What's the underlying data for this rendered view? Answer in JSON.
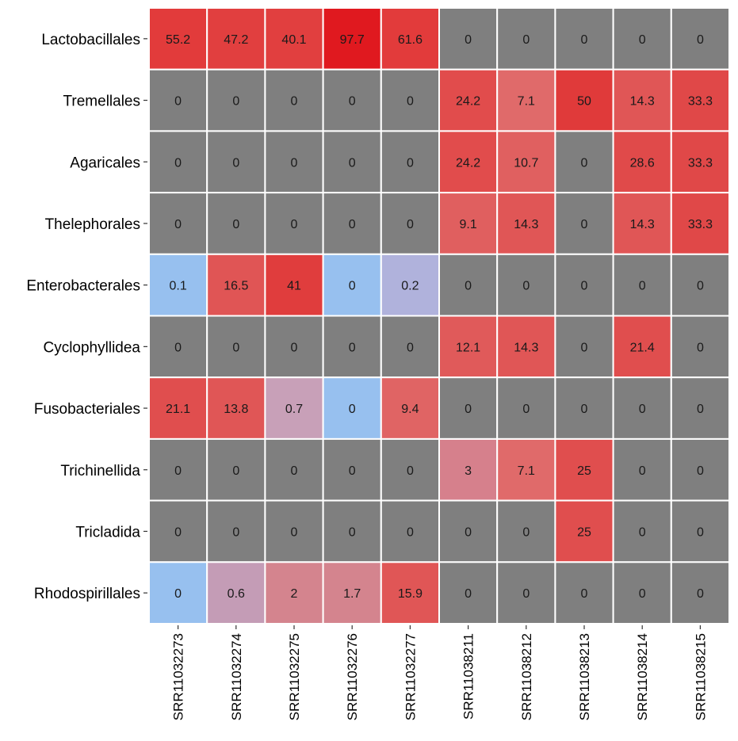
{
  "chart_data": {
    "type": "heatmap",
    "title": "",
    "xlabel": "",
    "ylabel": "",
    "legend": "none",
    "grid": false,
    "rows": [
      "Lactobacillales",
      "Tremellales",
      "Agaricales",
      "Thelephorales",
      "Enterobacterales",
      "Cyclophyllidea",
      "Fusobacteriales",
      "Trichinellida",
      "Tricladida",
      "Rhodospirillales"
    ],
    "columns": [
      "SRR11032273",
      "SRR11032274",
      "SRR11032275",
      "SRR11032276",
      "SRR11032277",
      "SRR11038211",
      "SRR11038212",
      "SRR11038213",
      "SRR11038214",
      "SRR11038215"
    ],
    "values": [
      [
        "55.2",
        "47.2",
        "40.1",
        "97.7",
        "61.6",
        "0",
        "0",
        "0",
        "0",
        "0"
      ],
      [
        "0",
        "0",
        "0",
        "0",
        "0",
        "24.2",
        "7.1",
        "50",
        "14.3",
        "33.3"
      ],
      [
        "0",
        "0",
        "0",
        "0",
        "0",
        "24.2",
        "10.7",
        "0",
        "28.6",
        "33.3"
      ],
      [
        "0",
        "0",
        "0",
        "0",
        "0",
        "9.1",
        "14.3",
        "0",
        "14.3",
        "33.3"
      ],
      [
        "0.1",
        "16.5",
        "41",
        "0",
        "0.2",
        "0",
        "0",
        "0",
        "0",
        "0"
      ],
      [
        "0",
        "0",
        "0",
        "0",
        "0",
        "12.1",
        "14.3",
        "0",
        "21.4",
        "0"
      ],
      [
        "21.1",
        "13.8",
        "0.7",
        "0",
        "9.4",
        "0",
        "0",
        "0",
        "0",
        "0"
      ],
      [
        "0",
        "0",
        "0",
        "0",
        "0",
        "3",
        "7.1",
        "25",
        "0",
        "0"
      ],
      [
        "0",
        "0",
        "0",
        "0",
        "0",
        "0",
        "0",
        "25",
        "0",
        "0"
      ],
      [
        "0",
        "0.6",
        "2",
        "1.7",
        "15.9",
        "0",
        "0",
        "0",
        "0",
        "0"
      ]
    ],
    "cell_colors": [
      [
        "#e23b3b",
        "#e13f3f",
        "#e13f3f",
        "#e0191f",
        "#e23b3b",
        "#7f7f7f",
        "#7f7f7f",
        "#7f7f7f",
        "#7f7f7f",
        "#7f7f7f"
      ],
      [
        "#7f7f7f",
        "#7f7f7f",
        "#7f7f7f",
        "#7f7f7f",
        "#7f7f7f",
        "#e14c4c",
        "#e06a6a",
        "#e03a3a",
        "#e05656",
        "#e04848"
      ],
      [
        "#7f7f7f",
        "#7f7f7f",
        "#7f7f7f",
        "#7f7f7f",
        "#7f7f7f",
        "#e14c4c",
        "#e06060",
        "#7f7f7f",
        "#e04a4a",
        "#e04848"
      ],
      [
        "#7f7f7f",
        "#7f7f7f",
        "#7f7f7f",
        "#7f7f7f",
        "#7f7f7f",
        "#e05f5f",
        "#e05656",
        "#7f7f7f",
        "#e05656",
        "#e04848"
      ],
      [
        "#97c0ef",
        "#e05555",
        "#e03d3d",
        "#97c0ef",
        "#b0b2dc",
        "#7f7f7f",
        "#7f7f7f",
        "#7f7f7f",
        "#7f7f7f",
        "#7f7f7f"
      ],
      [
        "#7f7f7f",
        "#7f7f7f",
        "#7f7f7f",
        "#7f7f7f",
        "#7f7f7f",
        "#e05a5a",
        "#e05656",
        "#7f7f7f",
        "#e04e4e",
        "#7f7f7f"
      ],
      [
        "#e04e4e",
        "#e05656",
        "#c8a0b8",
        "#97c0ef",
        "#e06464",
        "#7f7f7f",
        "#7f7f7f",
        "#7f7f7f",
        "#7f7f7f",
        "#7f7f7f"
      ],
      [
        "#7f7f7f",
        "#7f7f7f",
        "#7f7f7f",
        "#7f7f7f",
        "#7f7f7f",
        "#d6808c",
        "#e06a6a",
        "#e04e4e",
        "#7f7f7f",
        "#7f7f7f"
      ],
      [
        "#7f7f7f",
        "#7f7f7f",
        "#7f7f7f",
        "#7f7f7f",
        "#7f7f7f",
        "#7f7f7f",
        "#7f7f7f",
        "#e04e4e",
        "#7f7f7f",
        "#7f7f7f"
      ],
      [
        "#97c0ef",
        "#c49cb6",
        "#d4848e",
        "#d4848e",
        "#e05656",
        "#7f7f7f",
        "#7f7f7f",
        "#7f7f7f",
        "#7f7f7f",
        "#7f7f7f"
      ]
    ],
    "colors": {
      "zero_absent": "#7f7f7f",
      "zero_present": "#97c0ef",
      "high": "#e0191f",
      "cell_border": "#ffffff",
      "label_text": "#000000",
      "cell_text": "#1a1a1a",
      "tick": "#333333"
    }
  }
}
